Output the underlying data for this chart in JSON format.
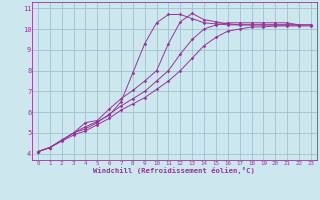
{
  "bg_color": "#cce8ee",
  "line_color": "#993399",
  "grid_color": "#99bbcc",
  "xlabel": "Windchill (Refroidissement éolien,°C)",
  "xlabel_color": "#993399",
  "tick_color": "#993399",
  "xlim": [
    -0.5,
    23.5
  ],
  "ylim": [
    3.7,
    11.3
  ],
  "xticks": [
    0,
    1,
    2,
    3,
    4,
    5,
    6,
    7,
    8,
    9,
    10,
    11,
    12,
    13,
    14,
    15,
    16,
    17,
    18,
    19,
    20,
    21,
    22,
    23
  ],
  "yticks": [
    4,
    5,
    6,
    7,
    8,
    9,
    10,
    11
  ],
  "lines": [
    [
      4.1,
      4.3,
      4.65,
      5.0,
      5.3,
      5.55,
      5.85,
      6.5,
      7.9,
      9.3,
      10.3,
      10.7,
      10.7,
      10.5,
      10.3,
      10.25,
      10.2,
      10.2,
      10.2,
      10.2,
      10.2,
      10.2,
      10.2
    ],
    [
      4.1,
      4.3,
      4.65,
      5.0,
      5.5,
      5.6,
      6.15,
      6.65,
      7.05,
      7.5,
      8.0,
      9.3,
      10.35,
      10.75,
      10.45,
      10.35,
      10.25,
      10.2,
      10.2,
      10.2,
      10.2,
      10.2,
      10.2,
      10.2
    ],
    [
      4.1,
      4.3,
      4.65,
      5.0,
      5.2,
      5.5,
      5.9,
      6.3,
      6.65,
      7.0,
      7.5,
      8.0,
      8.8,
      9.5,
      10.0,
      10.2,
      10.3,
      10.3,
      10.3,
      10.3,
      10.3,
      10.3,
      10.2,
      10.2
    ],
    [
      4.1,
      4.3,
      4.6,
      4.9,
      5.1,
      5.4,
      5.7,
      6.1,
      6.4,
      6.7,
      7.1,
      7.5,
      8.0,
      8.6,
      9.2,
      9.6,
      9.9,
      10.0,
      10.1,
      10.1,
      10.15,
      10.15,
      10.15,
      10.15
    ]
  ]
}
